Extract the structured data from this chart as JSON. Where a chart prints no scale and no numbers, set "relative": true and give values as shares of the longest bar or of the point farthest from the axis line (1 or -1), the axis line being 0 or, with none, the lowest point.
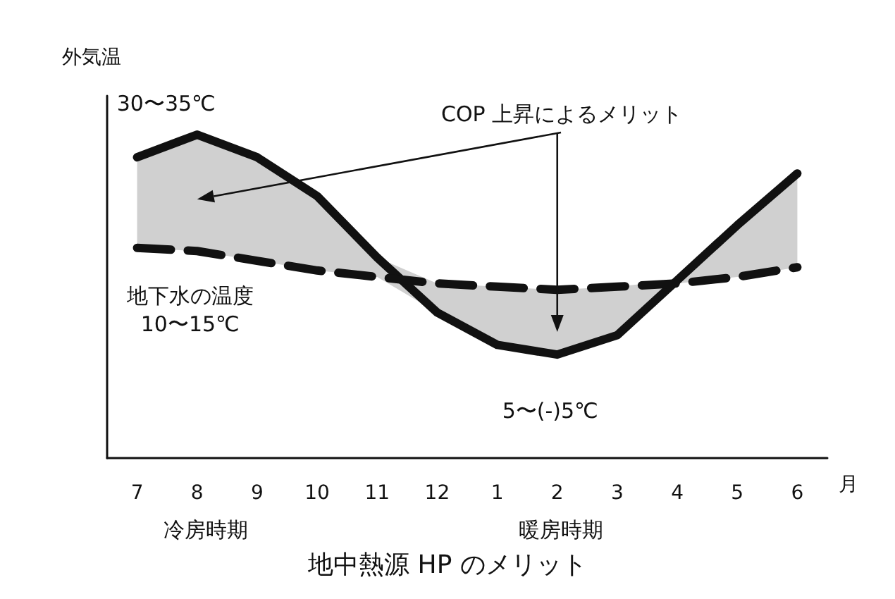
{
  "chart_data": {
    "type": "line",
    "relative": true,
    "title": "地中熱源 HP のメリット",
    "ylabel": "外気温",
    "xlabel": "月",
    "categories": [
      "7",
      "8",
      "9",
      "10",
      "11",
      "12",
      "1",
      "2",
      "3",
      "4",
      "5",
      "6"
    ],
    "series": [
      {
        "color": "#111111",
        "line_style": "solid",
        "values": [
          0.93,
          1.0,
          0.93,
          0.81,
          0.62,
          0.45,
          0.35,
          0.32,
          0.38,
          0.55,
          0.72,
          0.88
        ],
        "lower": [
          0.65,
          0.64,
          0.61,
          0.58,
          0.56,
          0.45,
          0.35,
          0.32,
          0.38,
          0.54,
          0.56,
          0.59
        ],
        "upper": [
          0.93,
          1.0,
          0.93,
          0.81,
          0.62,
          0.54,
          0.53,
          0.52,
          0.53,
          0.55,
          0.72,
          0.88
        ]
      },
      {
        "color": "#111111",
        "line_style": "dashed",
        "values": [
          0.65,
          0.64,
          0.61,
          0.58,
          0.56,
          0.54,
          0.53,
          0.52,
          0.53,
          0.54,
          0.56,
          0.59
        ]
      }
    ],
    "annotations": [
      {
        "text": "30〜35℃",
        "x": "8",
        "y": 1.0
      },
      "COP 上昇によるメリット",
      {
        "text": "地下水の温度\n10〜15℃",
        "x": "8",
        "y": 0.64
      },
      {
        "text": "5〜(-)5℃",
        "x": "2",
        "y": 0.32
      },
      "冷房時期",
      "暖房時期"
    ],
    "grid": false,
    "marker": "none"
  }
}
